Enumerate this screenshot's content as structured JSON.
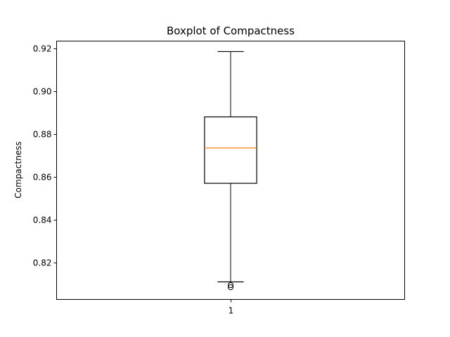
{
  "chart_data": {
    "type": "boxplot",
    "title": "Boxplot of Compactness",
    "xlabel": "",
    "ylabel": "Compactness",
    "categories": [
      "1"
    ],
    "ylim": [
      0.8028,
      0.9234
    ],
    "yticks": [
      0.82,
      0.84,
      0.86,
      0.88,
      0.9,
      0.92
    ],
    "ytick_labels": [
      "0.82",
      "0.84",
      "0.86",
      "0.88",
      "0.90",
      "0.92"
    ],
    "boxes": [
      {
        "category": "1",
        "whisker_low": 0.811,
        "q1": 0.857,
        "median": 0.8735,
        "q3": 0.888,
        "whisker_high": 0.9185,
        "outliers": [
          0.8085,
          0.8095
        ]
      }
    ],
    "grid": false,
    "colors": {
      "box": "#000000",
      "median": "#ff7f0e",
      "whisker": "#000000",
      "outlier": "#000000"
    }
  }
}
